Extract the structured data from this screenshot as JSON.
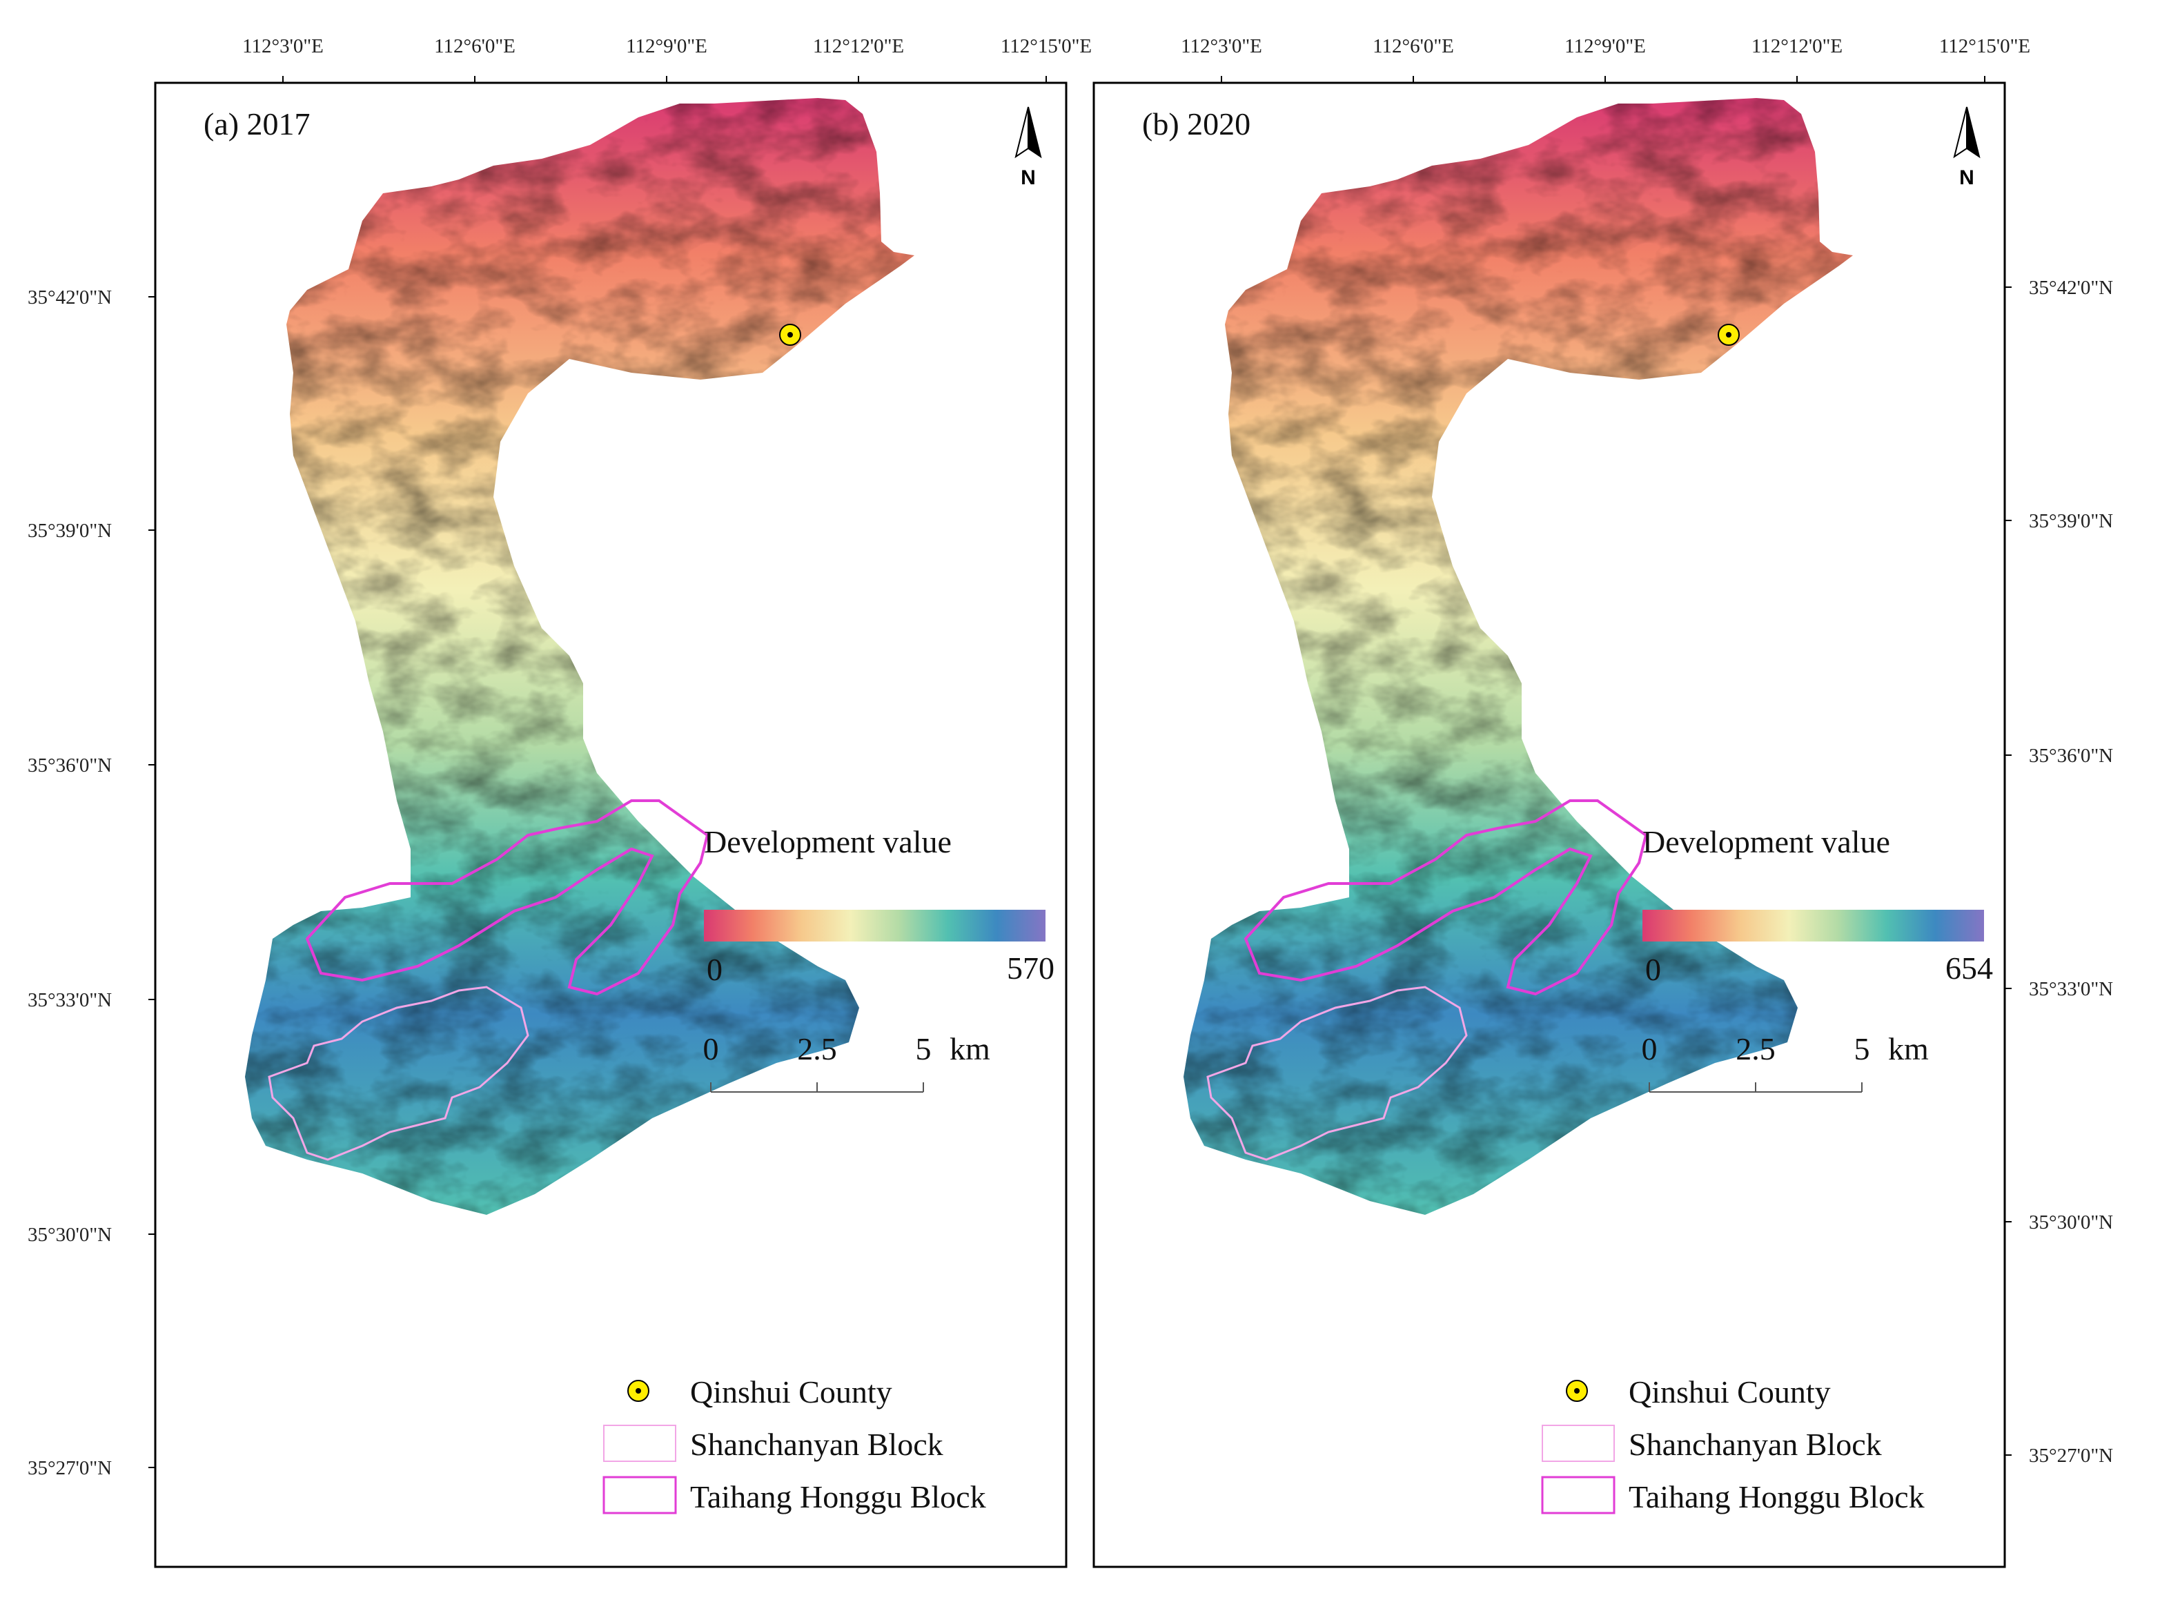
{
  "lon_ticks": [
    "112°3'0\"E",
    "112°6'0\"E",
    "112°9'0\"E",
    "112°12'0\"E",
    "112°15'0\"E"
  ],
  "lat_ticks": [
    "35°42'0\"N",
    "35°39'0\"N",
    "35°36'0\"N",
    "35°33'0\"N",
    "35°30'0\"N",
    "35°27'0\"N"
  ],
  "north_label": "N",
  "gradient_colors": [
    "#d93a72",
    "#f28068",
    "#f6c98c",
    "#f3f0b8",
    "#b3dba6",
    "#52c0b1",
    "#3d89c1",
    "#8575c4"
  ],
  "legend_title": "Development value",
  "scale": {
    "labels": [
      "0",
      "2.5",
      "5"
    ],
    "unit": "km"
  },
  "legend_items": {
    "county": "Qinshui County",
    "shanchanyan": "Shanchanyan Block",
    "taihang": "Taihang Honggu Block"
  },
  "marker_colors": {
    "county_fill": "#ffee00",
    "shanchanyan_outline": "#f2a6e6",
    "taihang_outline": "#e23dd6"
  },
  "panels": [
    {
      "title": "(a) 2017",
      "min_label": "0",
      "max_label": "570"
    },
    {
      "title": "(b) 2020",
      "min_label": "0",
      "max_label": "654"
    }
  ]
}
